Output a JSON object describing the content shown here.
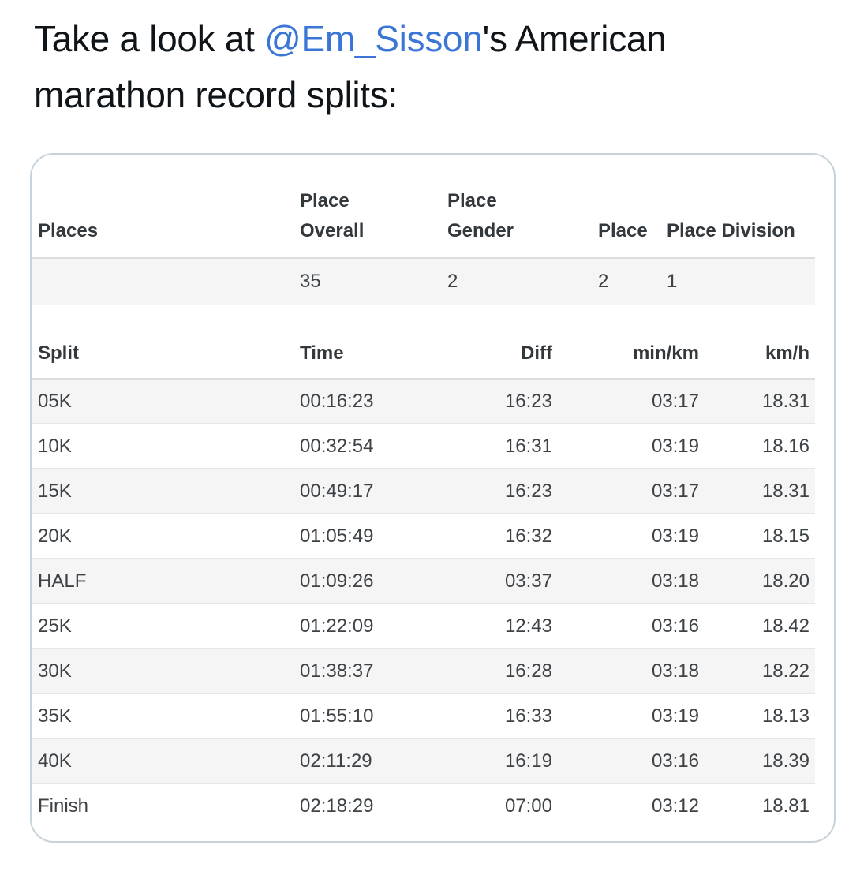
{
  "tweet": {
    "text_before": "Take a look at ",
    "mention": "@Em_Sisson",
    "text_after": "'s American marathon record splits:"
  },
  "colors": {
    "mention_link": "#3b76d6",
    "headline_text": "#0f1419",
    "card_border": "#c7d3da",
    "row_stripe": "#f5f5f6"
  },
  "places_table": {
    "headers": [
      "Places",
      "Place\nOverall",
      "Place\nGender",
      "Place",
      "Place Division"
    ],
    "rows": [
      [
        "",
        "35",
        "2",
        "2",
        "1"
      ]
    ]
  },
  "splits_table": {
    "headers": [
      "Split",
      "Time",
      "Diff",
      "min/km",
      "km/h"
    ],
    "rows": [
      [
        "05K",
        "00:16:23",
        "16:23",
        "03:17",
        "18.31"
      ],
      [
        "10K",
        "00:32:54",
        "16:31",
        "03:19",
        "18.16"
      ],
      [
        "15K",
        "00:49:17",
        "16:23",
        "03:17",
        "18.31"
      ],
      [
        "20K",
        "01:05:49",
        "16:32",
        "03:19",
        "18.15"
      ],
      [
        "HALF",
        "01:09:26",
        "03:37",
        "03:18",
        "18.20"
      ],
      [
        "25K",
        "01:22:09",
        "12:43",
        "03:16",
        "18.42"
      ],
      [
        "30K",
        "01:38:37",
        "16:28",
        "03:18",
        "18.22"
      ],
      [
        "35K",
        "01:55:10",
        "16:33",
        "03:19",
        "18.13"
      ],
      [
        "40K",
        "02:11:29",
        "16:19",
        "03:16",
        "18.39"
      ],
      [
        "Finish",
        "02:18:29",
        "07:00",
        "03:12",
        "18.81"
      ]
    ]
  }
}
